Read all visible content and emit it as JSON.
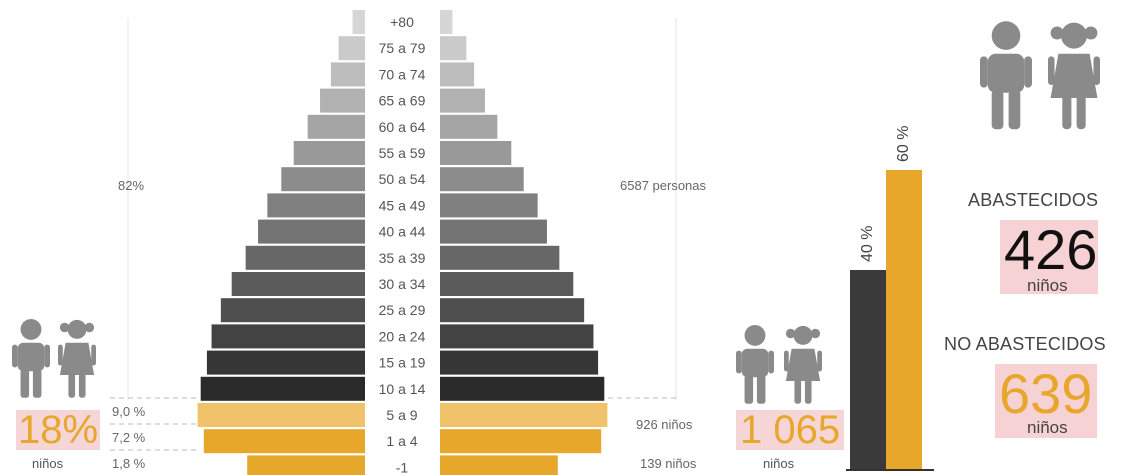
{
  "chart_data": {
    "type": "bar",
    "subtype": "population-pyramid",
    "categories": [
      "+80",
      "75 a 79",
      "70 a 74",
      "65 a 69",
      "60 a 64",
      "55 a 59",
      "50 a 54",
      "45 a 49",
      "40 a 44",
      "35 a 39",
      "30 a 34",
      "25 a 29",
      "20 a 24",
      "15 a 19",
      "10 a 14",
      "5 a 9",
      "1 a 4",
      "-1"
    ],
    "left_values": [
      8,
      17,
      22,
      29,
      37,
      46,
      54,
      63,
      69,
      77,
      86,
      93,
      99,
      102,
      106,
      108,
      104,
      76
    ],
    "right_values": [
      8,
      17,
      22,
      29,
      37,
      46,
      54,
      63,
      69,
      77,
      86,
      93,
      99,
      102,
      106,
      108,
      104,
      76
    ],
    "child_groups": [
      "5 a 9",
      "1 a 4",
      "-1"
    ],
    "percent_labels": [
      "9,0 %",
      "7,2 %",
      "1,8 %"
    ],
    "count_labels": [
      "926 niños",
      "139 niños"
    ],
    "adult_share_label": "82%",
    "total_label": "6587 personas",
    "child_share": {
      "value": "18%",
      "label": "niños"
    },
    "children_total": {
      "value": "1 065",
      "label": "niños"
    },
    "bars": {
      "categories": [
        "ABASTECIDOS",
        "NO ABASTECIDOS"
      ],
      "values": [
        40,
        60
      ],
      "labels": [
        "40 %",
        "60 %"
      ],
      "colors": [
        "#3a3a3a",
        "#e6a72a"
      ]
    },
    "supplied": {
      "heading": "ABASTECIDOS",
      "value": "426",
      "label": "niños"
    },
    "not_supplied": {
      "heading": "NO ABASTECIDOS",
      "value": "639",
      "label": "niños"
    }
  },
  "colors": {
    "accent": "#e6a72a",
    "pink": "#f7d2d4",
    "icon": "#8a8a8a",
    "dark": "#3a3a3a"
  }
}
